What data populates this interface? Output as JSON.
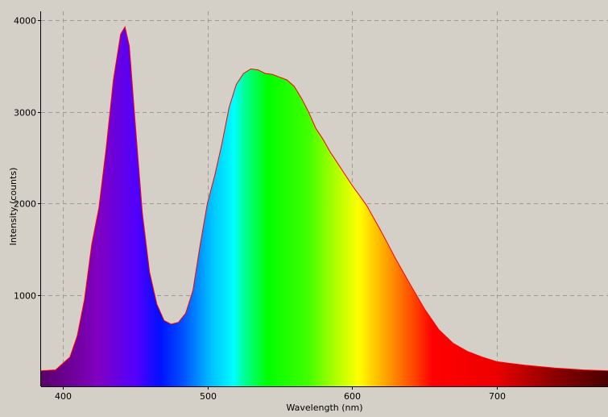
{
  "chart_data": {
    "type": "area",
    "title": "",
    "xlabel": "Wavelength (nm)",
    "ylabel": "Intensity (counts)",
    "xlim": [
      385,
      777
    ],
    "ylim": [
      0,
      4100
    ],
    "x_ticks": [
      400,
      500,
      600,
      700
    ],
    "y_ticks": [
      1000,
      2000,
      3000,
      4000
    ],
    "grid": true,
    "grid_style": "dashed",
    "fill": "visible-spectrum gradient",
    "line_color": "#ff0000",
    "background_color": "#d4d0c8",
    "series": [
      {
        "x": [
          385,
          395,
          405,
          410,
          415,
          420,
          425,
          430,
          435,
          440,
          443,
          446,
          450,
          455,
          460,
          465,
          470,
          475,
          480,
          485,
          490,
          495,
          500,
          505,
          510,
          515,
          520,
          525,
          530,
          535,
          540,
          545,
          550,
          555,
          560,
          565,
          570,
          575,
          580,
          585,
          590,
          595,
          600,
          610,
          620,
          630,
          640,
          650,
          660,
          670,
          680,
          690,
          700,
          720,
          740,
          760,
          777
        ],
        "y": [
          170,
          180,
          320,
          550,
          950,
          1550,
          1950,
          2600,
          3350,
          3850,
          3930,
          3720,
          2900,
          1900,
          1250,
          900,
          720,
          680,
          700,
          800,
          1050,
          1550,
          2000,
          2300,
          2650,
          3050,
          3300,
          3420,
          3470,
          3460,
          3420,
          3410,
          3380,
          3350,
          3280,
          3150,
          3000,
          2820,
          2700,
          2560,
          2440,
          2320,
          2200,
          1980,
          1700,
          1400,
          1120,
          850,
          620,
          470,
          380,
          320,
          270,
          230,
          200,
          180,
          170
        ]
      }
    ]
  }
}
